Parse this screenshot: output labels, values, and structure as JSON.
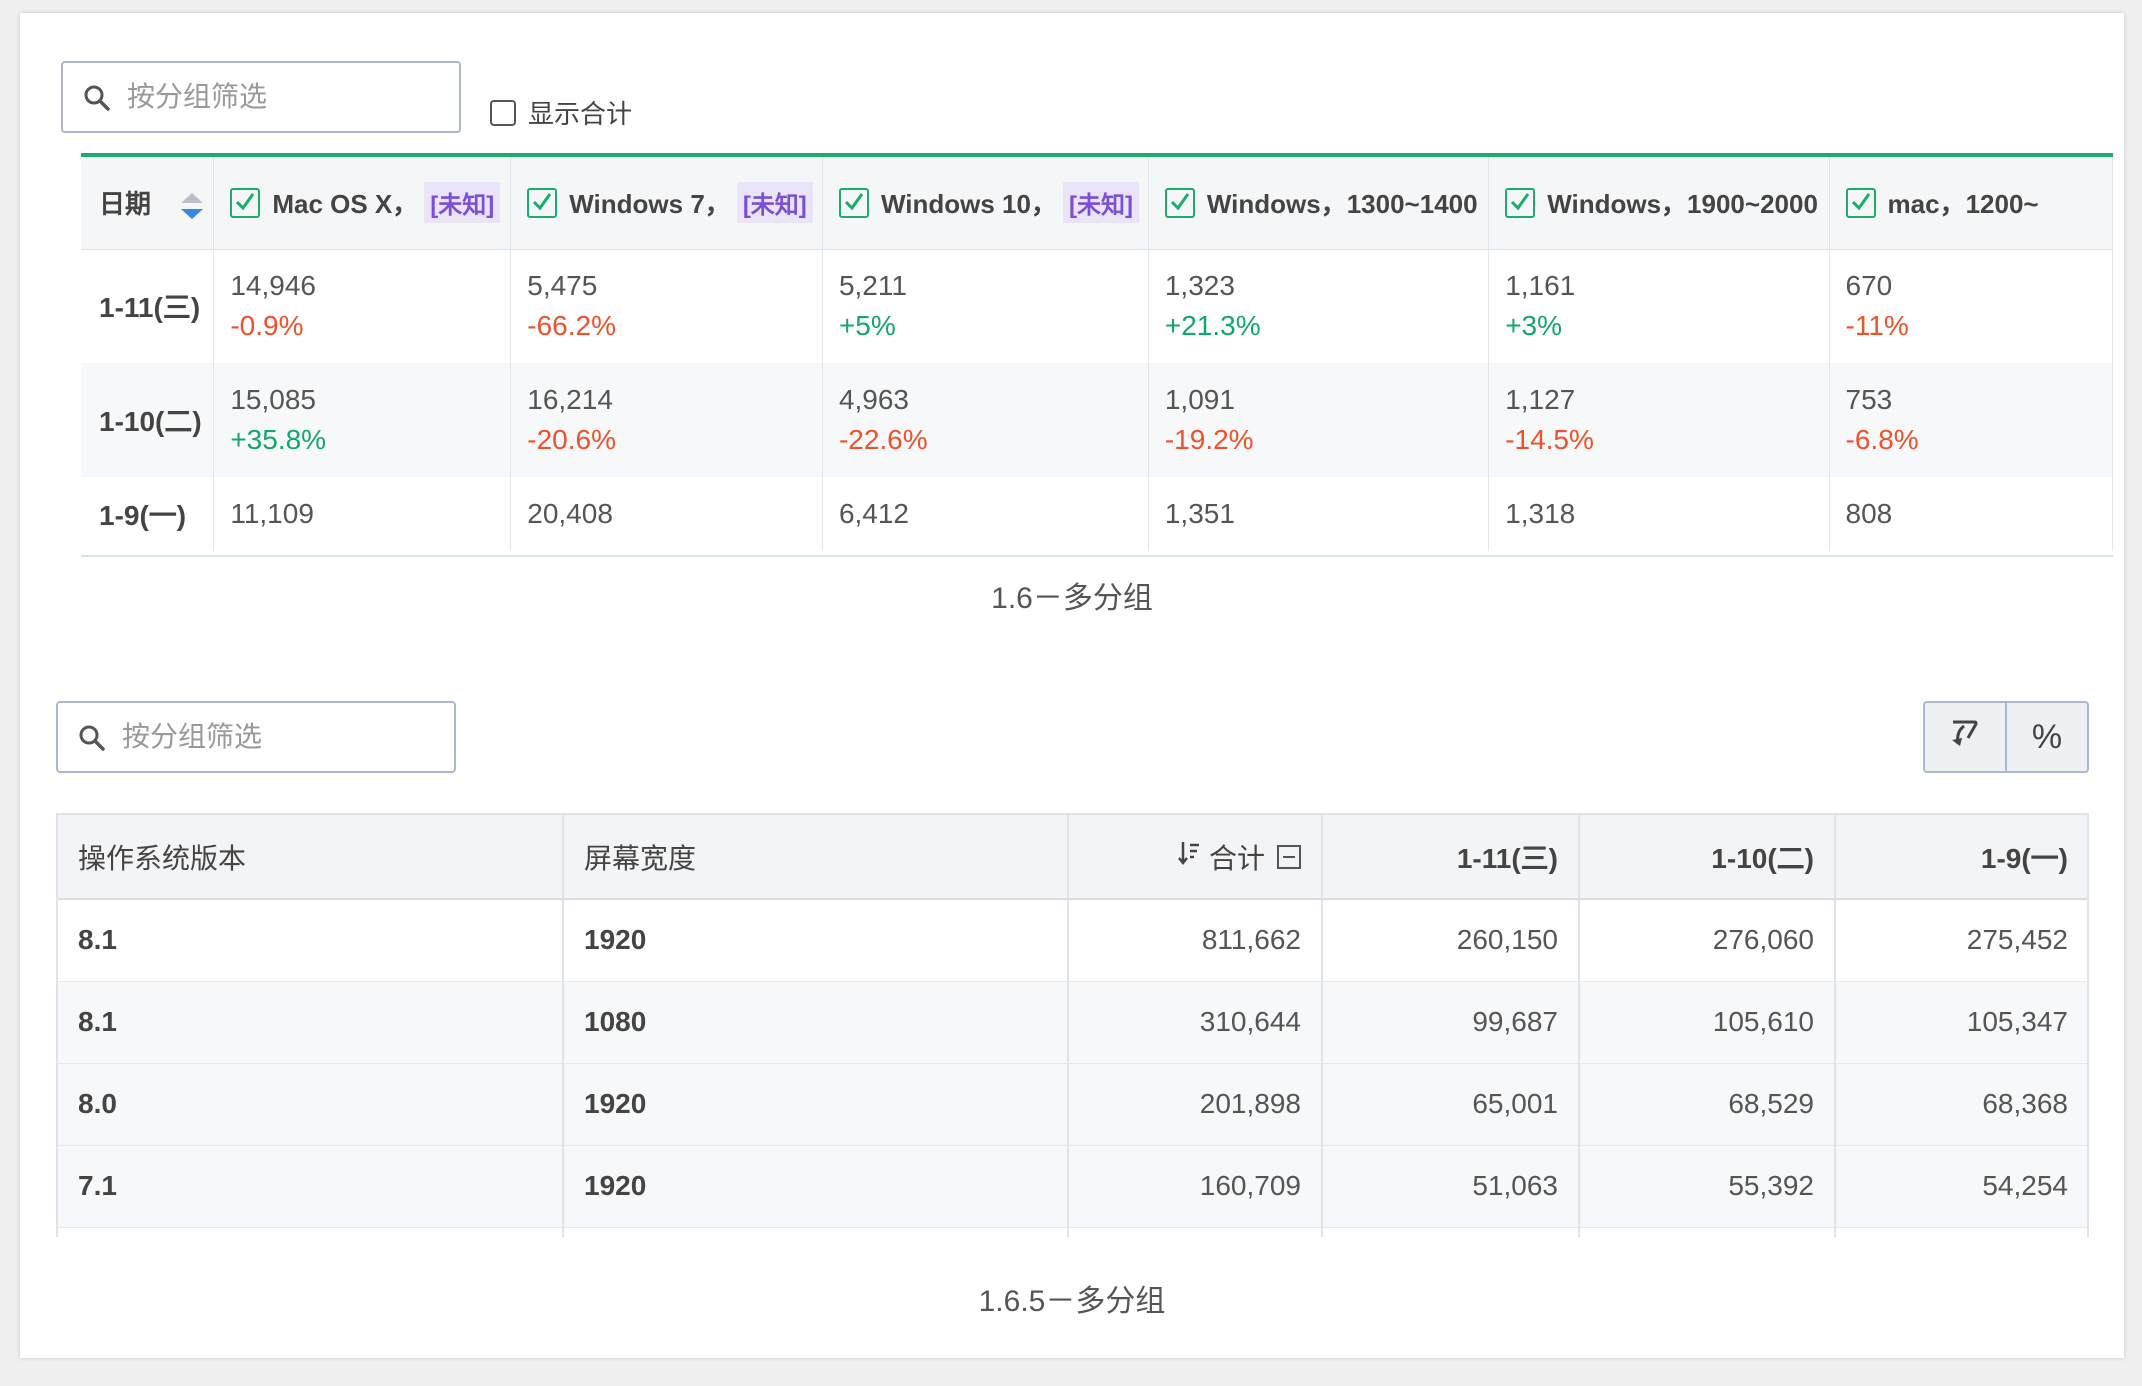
{
  "top": {
    "search_placeholder": "按分组筛选",
    "show_total_label": "显示合计",
    "date_header": "日期",
    "columns": [
      {
        "name": "Mac OS X，",
        "tag": "[未知]"
      },
      {
        "name": "Windows 7，",
        "tag": "[未知]"
      },
      {
        "name": "Windows 10，",
        "tag": "[未知]"
      },
      {
        "name": "Windows，1300~1400",
        "tag": ""
      },
      {
        "name": "Windows，1900~2000",
        "tag": ""
      },
      {
        "name": "mac，1200~",
        "tag": ""
      }
    ],
    "rows": [
      {
        "date": "1-11(三)",
        "cells": [
          {
            "value": "14,946",
            "change": "-0.9%"
          },
          {
            "value": "5,475",
            "change": "-66.2%"
          },
          {
            "value": "5,211",
            "change": "+5%"
          },
          {
            "value": "1,323",
            "change": "+21.3%"
          },
          {
            "value": "1,161",
            "change": "+3%"
          },
          {
            "value": "670",
            "change": "-11%"
          }
        ]
      },
      {
        "date": "1-10(二)",
        "cells": [
          {
            "value": "15,085",
            "change": "+35.8%"
          },
          {
            "value": "16,214",
            "change": "-20.6%"
          },
          {
            "value": "4,963",
            "change": "-22.6%"
          },
          {
            "value": "1,091",
            "change": "-19.2%"
          },
          {
            "value": "1,127",
            "change": "-14.5%"
          },
          {
            "value": "753",
            "change": "-6.8%"
          }
        ]
      },
      {
        "date": "1-9(一)",
        "cells": [
          {
            "value": "11,109",
            "change": ""
          },
          {
            "value": "20,408",
            "change": ""
          },
          {
            "value": "6,412",
            "change": ""
          },
          {
            "value": "1,351",
            "change": ""
          },
          {
            "value": "1,318",
            "change": ""
          },
          {
            "value": "808",
            "change": ""
          }
        ]
      }
    ],
    "caption": "1.6－多分组",
    "colors": {
      "accent": "#1aad6e",
      "negative": "#f0512a",
      "positive": "#12a86a",
      "tag_bg": "#e9e4f7",
      "tag_fg": "#7a4fd6"
    }
  },
  "bottom": {
    "search_placeholder": "按分组筛选",
    "toolbar": {
      "pivot_icon": "pivot-icon",
      "percent_label": "%"
    },
    "headers": {
      "os_version": "操作系统版本",
      "screen_width": "屏幕宽度",
      "total": "合计",
      "dates": [
        "1-11(三)",
        "1-10(二)",
        "1-9(一)"
      ]
    },
    "rows": [
      {
        "os": "8.1",
        "width": "1920",
        "total": "811,662",
        "d1": "260,150",
        "d2": "276,060",
        "d3": "275,452"
      },
      {
        "os": "8.1",
        "width": "1080",
        "total": "310,644",
        "d1": "99,687",
        "d2": "105,610",
        "d3": "105,347"
      },
      {
        "os": "8.0",
        "width": "1920",
        "total": "201,898",
        "d1": "65,001",
        "d2": "68,529",
        "d3": "68,368"
      },
      {
        "os": "7.1",
        "width": "1920",
        "total": "160,709",
        "d1": "51,063",
        "d2": "55,392",
        "d3": "54,254"
      }
    ],
    "caption": "1.6.5－多分组"
  }
}
